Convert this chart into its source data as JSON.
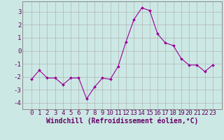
{
  "x": [
    0,
    1,
    2,
    3,
    4,
    5,
    6,
    7,
    8,
    9,
    10,
    11,
    12,
    13,
    14,
    15,
    16,
    17,
    18,
    19,
    20,
    21,
    22,
    23
  ],
  "y": [
    -2.2,
    -1.5,
    -2.1,
    -2.1,
    -2.6,
    -2.1,
    -2.1,
    -3.7,
    -2.8,
    -2.1,
    -2.2,
    -1.2,
    0.7,
    2.4,
    3.3,
    3.1,
    1.3,
    0.6,
    0.4,
    -0.6,
    -1.1,
    -1.1,
    -1.6,
    -1.1
  ],
  "line_color": "#990099",
  "marker": "D",
  "marker_size": 2.0,
  "bg_color": "#cce8e4",
  "grid_color": "#aaaaaa",
  "xlabel": "Windchill (Refroidissement éolien,°C)",
  "xlabel_color": "#660066",
  "tick_color": "#660066",
  "ylim": [
    -4.5,
    3.8
  ],
  "yticks": [
    -4,
    -3,
    -2,
    -1,
    0,
    1,
    2,
    3
  ],
  "xtick_labels": [
    "0",
    "1",
    "2",
    "3",
    "4",
    "5",
    "6",
    "7",
    "8",
    "9",
    "10",
    "11",
    "12",
    "13",
    "14",
    "15",
    "16",
    "17",
    "18",
    "19",
    "20",
    "21",
    "22",
    "23"
  ],
  "spine_color": "#888888",
  "font_size": 6.5,
  "xlabel_fontsize": 7.0,
  "lw": 0.8
}
